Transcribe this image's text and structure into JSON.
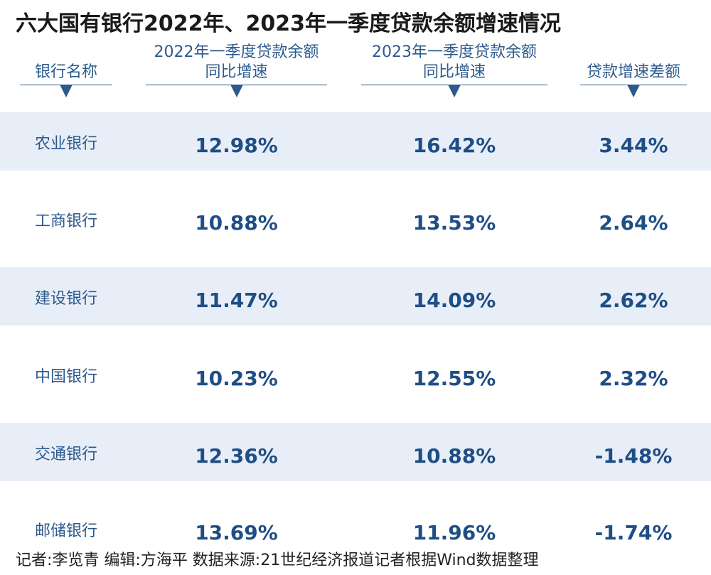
{
  "title": "六大国有银行2022年、2023年一季度贷款余额增速情况",
  "columns": [
    {
      "line1": "",
      "line2": "银行名称"
    },
    {
      "line1": "2022年一季度贷款余额",
      "line2": "同比增速"
    },
    {
      "line1": "2023年一季度贷款余额",
      "line2": "同比增速"
    },
    {
      "line1": "",
      "line2": "贷款增速差额"
    }
  ],
  "rows": [
    {
      "bank": "农业银行",
      "y2022": "12.98%",
      "y2023": "16.42%",
      "diff": "3.44%"
    },
    {
      "bank": "工商银行",
      "y2022": "10.88%",
      "y2023": "13.53%",
      "diff": "2.64%"
    },
    {
      "bank": "建设银行",
      "y2022": "11.47%",
      "y2023": "14.09%",
      "diff": "2.62%"
    },
    {
      "bank": "中国银行",
      "y2022": "10.23%",
      "y2023": "12.55%",
      "diff": "2.32%"
    },
    {
      "bank": "交通银行",
      "y2022": "12.36%",
      "y2023": "10.88%",
      "diff": "-1.48%"
    },
    {
      "bank": "邮储银行",
      "y2022": "13.69%",
      "y2023": "11.96%",
      "diff": "-1.74%"
    }
  ],
  "footer": "记者:李览青   编辑:方海平   数据来源:21世纪经济报道记者根据Wind数据整理",
  "colors": {
    "accent": "#2c5a8c",
    "number": "#1f4e86",
    "row_shade": "#e8eef8"
  },
  "chart_data": {
    "type": "table",
    "title": "六大国有银行2022年、2023年一季度贷款余额增速情况",
    "headers": [
      "银行名称",
      "2022年一季度贷款余额同比增速",
      "2023年一季度贷款余额同比增速",
      "贷款增速差额"
    ],
    "categories": [
      "农业银行",
      "工商银行",
      "建设银行",
      "中国银行",
      "交通银行",
      "邮储银行"
    ],
    "series": [
      {
        "name": "2022年一季度贷款余额同比增速",
        "values": [
          12.98,
          10.88,
          11.47,
          10.23,
          12.36,
          13.69
        ]
      },
      {
        "name": "2023年一季度贷款余额同比增速",
        "values": [
          16.42,
          13.53,
          14.09,
          12.55,
          10.88,
          11.96
        ]
      },
      {
        "name": "贷款增速差额",
        "values": [
          3.44,
          2.64,
          2.62,
          2.32,
          -1.48,
          -1.74
        ]
      }
    ]
  }
}
